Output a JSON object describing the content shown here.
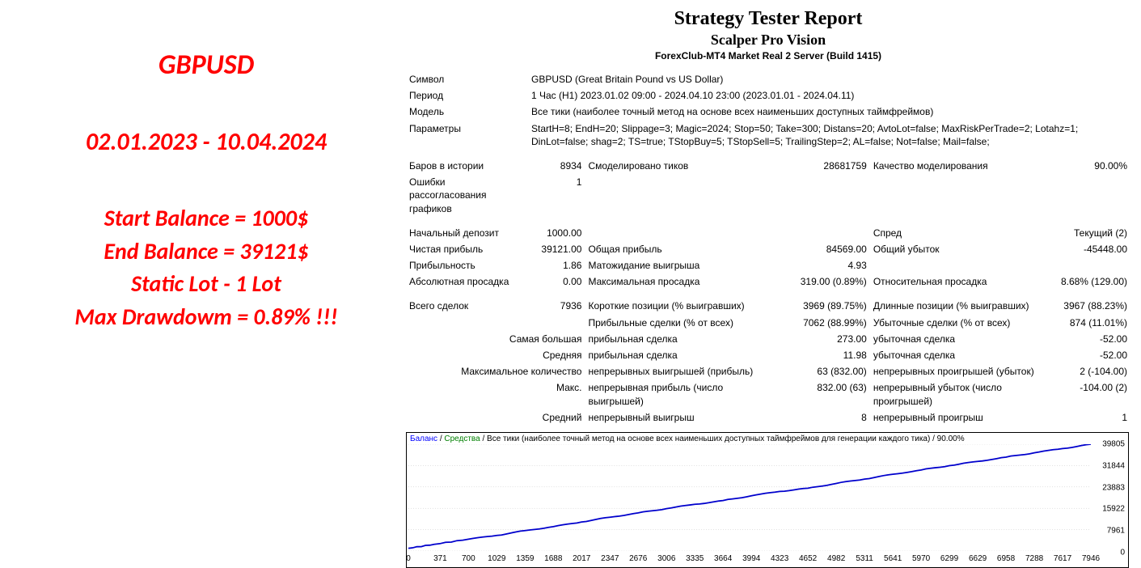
{
  "left": {
    "title": "GBPUSD",
    "dates": "02.01.2023 - 10.04.2024",
    "line1": "Start Balance = 1000$",
    "line2": "End Balance = 39121$",
    "line3": "Static Lot - 1 Lot",
    "line4": "Max Drawdowm = 0.89% !!!",
    "color": "#ff0000"
  },
  "header": {
    "title": "Strategy Tester Report",
    "subtitle": "Scalper Pro Vision",
    "server": "ForexClub-MT4 Market Real 2 Server (Build 1415)"
  },
  "rows": {
    "symbol_l": "Символ",
    "symbol_v": "GBPUSD (Great Britain Pound vs US Dollar)",
    "period_l": "Период",
    "period_v": "1 Час (H1) 2023.01.02 09:00 - 2024.04.10 23:00 (2023.01.01 - 2024.04.11)",
    "model_l": "Модель",
    "model_v": "Все тики (наиболее точный метод на основе всех наименьших доступных таймфреймов)",
    "param_l": "Параметры",
    "param_v": "StartH=8; EndH=20; Slippage=3; Magic=2024; Stop=50; Take=300; Distans=20; AvtoLot=false; MaxRiskPerTrade=2; Lotahz=1; DinLot=false; shag=2; TS=true; TStopBuy=5; TStopSell=5; TrailingStep=2; AL=false; Not=false; Mail=false;",
    "bars_l": "Баров в истории",
    "bars_v": "8934",
    "ticks_l": "Смоделировано тиков",
    "ticks_v": "28681759",
    "quality_l": "Качество моделирования",
    "quality_v": "90.00%",
    "mismatch_l": "Ошибки рассогласования графиков",
    "mismatch_v": "1",
    "initdep_l": "Начальный депозит",
    "initdep_v": "1000.00",
    "spread_l": "Спред",
    "spread_v": "Текущий (2)",
    "netprofit_l": "Чистая прибыль",
    "netprofit_v": "39121.00",
    "grossprofit_l": "Общая прибыль",
    "grossprofit_v": "84569.00",
    "grossloss_l": "Общий убыток",
    "grossloss_v": "-45448.00",
    "pf_l": "Прибыльность",
    "pf_v": "1.86",
    "expected_l": "Матожидание выигрыша",
    "expected_v": "4.93",
    "absdd_l": "Абсолютная просадка",
    "absdd_v": "0.00",
    "maxdd_l": "Максимальная просадка",
    "maxdd_v": "319.00 (0.89%)",
    "reldd_l": "Относительная просадка",
    "reldd_v": "8.68% (129.00)",
    "total_l": "Всего сделок",
    "total_v": "7936",
    "short_l": "Короткие позиции (% выигравших)",
    "short_v": "3969 (89.75%)",
    "long_l": "Длинные позиции (% выигравших)",
    "long_v": "3967 (88.23%)",
    "proftrades_l": "Прибыльные сделки (% от всех)",
    "proftrades_v": "7062 (88.99%)",
    "losstrades_l": "Убыточные сделки (% от всех)",
    "losstrades_v": "874 (11.01%)",
    "largest_l": "Самая большая",
    "largest_win_l": "прибыльная сделка",
    "largest_win_v": "273.00",
    "largest_loss_l": "убыточная сделка",
    "largest_loss_v": "-52.00",
    "avg_l": "Средняя",
    "avg_win_l": "прибыльная сделка",
    "avg_win_v": "11.98",
    "avg_loss_l": "убыточная сделка",
    "avg_loss_v": "-52.00",
    "maxcons_l": "Максимальное количество",
    "maxcons_win_l": "непрерывных выигрышей (прибыль)",
    "maxcons_win_v": "63 (832.00)",
    "maxcons_loss_l": "непрерывных проигрышей (убыток)",
    "maxcons_loss_v": "2 (-104.00)",
    "maximal_l": "Макс.",
    "maximal_win_l": "непрерывная прибыль (число выигрышей)",
    "maximal_win_v": "832.00 (63)",
    "maximal_loss_l": "непрерывный убыток (число проигрышей)",
    "maximal_loss_v": "-104.00 (2)",
    "avgcons_l": "Средний",
    "avgcons_win_l": "непрерывный выигрыш",
    "avgcons_win_v": "8",
    "avgcons_loss_l": "непрерывный проигрыш",
    "avgcons_loss_v": "1"
  },
  "chart": {
    "legend_balance": "Баланс",
    "legend_equity": "Средства",
    "legend_rest": "Все тики (наиболее точный метод на основе всех наименьших доступных таймфреймов для генерации каждого тика) / 90.00%",
    "line_color": "#0000cc",
    "line_width": 1.8,
    "y_min": 0,
    "y_max": 39805,
    "y_ticks": [
      39805,
      31844,
      23883,
      15922,
      7961,
      0
    ],
    "x_ticks": [
      0,
      371,
      700,
      1029,
      1359,
      1688,
      2017,
      2347,
      2676,
      3006,
      3335,
      3664,
      3994,
      4323,
      4652,
      4982,
      5311,
      5641,
      5970,
      6299,
      6629,
      6958,
      7288,
      7617,
      7946
    ],
    "x_max": 7946,
    "series": [
      [
        0,
        1000
      ],
      [
        300,
        2500
      ],
      [
        700,
        4400
      ],
      [
        1029,
        5800
      ],
      [
        1359,
        7600
      ],
      [
        1688,
        9100
      ],
      [
        2017,
        10800
      ],
      [
        2347,
        12600
      ],
      [
        2676,
        14200
      ],
      [
        3006,
        15800
      ],
      [
        3335,
        17400
      ],
      [
        3664,
        18800
      ],
      [
        3994,
        20600
      ],
      [
        4323,
        22200
      ],
      [
        4652,
        23400
      ],
      [
        4982,
        25200
      ],
      [
        5311,
        26800
      ],
      [
        5641,
        28600
      ],
      [
        5970,
        30200
      ],
      [
        6299,
        31800
      ],
      [
        6629,
        33400
      ],
      [
        6958,
        35000
      ],
      [
        7288,
        36600
      ],
      [
        7617,
        38200
      ],
      [
        7946,
        39805
      ]
    ]
  }
}
